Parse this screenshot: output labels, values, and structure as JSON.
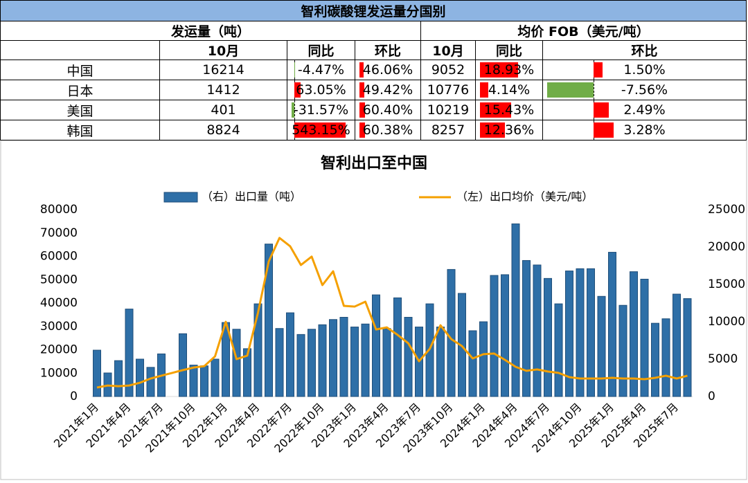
{
  "table": {
    "title": "智利碳酸锂发运量分国别",
    "group_headers": [
      "发运量（吨）",
      "均价 FOB（美元/吨）"
    ],
    "sub_headers": [
      "10月",
      "同比",
      "环比",
      "10月",
      "同比",
      "环比"
    ],
    "rows": [
      [
        "中国",
        "16214",
        "-4.47%",
        "46.06%",
        "9052",
        "18.93%",
        "1.50%"
      ],
      [
        "日本",
        "1412",
        "63.05%",
        "49.42%",
        "10776",
        "4.14%",
        "-7.56%"
      ],
      [
        "美国",
        "401",
        "-31.57%",
        "60.40%",
        "10219",
        "15.43%",
        "2.49%"
      ],
      [
        "韩国",
        "8824",
        "543.15%",
        "60.38%",
        "8257",
        "12.36%",
        "3.28%"
      ]
    ]
  },
  "chart_data": {
    "type": "combo",
    "title": "智利出口至中国",
    "categories": [
      "2021年1月",
      null,
      null,
      "2021年4月",
      null,
      null,
      "2021年7月",
      null,
      null,
      "2021年10月",
      null,
      null,
      "2022年1月",
      null,
      null,
      "2022年4月",
      null,
      null,
      "2022年7月",
      null,
      null,
      "2022年10月",
      null,
      null,
      "2023年1月",
      null,
      null,
      "2023年4月",
      null,
      null,
      "2023年7月",
      null,
      null,
      "2023年10月",
      null,
      null,
      "2024年1月",
      null,
      null,
      "2024年4月",
      null,
      null,
      "2024年7月",
      null,
      null,
      "2024年10月",
      null,
      null,
      "2025年1月",
      null,
      null,
      "2025年4月",
      null,
      null,
      "2025年7月",
      null
    ],
    "series": [
      {
        "name": "（右）出口量（吨）",
        "type": "bar",
        "axis": "y2",
        "color": "#2e6fa7",
        "values": [
          6200,
          3150,
          4800,
          11700,
          5000,
          3900,
          5700,
          null,
          8400,
          4200,
          4100,
          5000,
          9900,
          9000,
          6400,
          12400,
          20400,
          9100,
          11200,
          8300,
          9000,
          9600,
          10300,
          10600,
          9300,
          9700,
          13600,
          9100,
          13200,
          10600,
          9300,
          12400,
          9300,
          17000,
          13800,
          8800,
          10000,
          16200,
          16300,
          23100,
          18200,
          17600,
          15800,
          12400,
          16800,
          17100,
          17100,
          13400,
          19300,
          12200,
          16700,
          15700,
          9800,
          10400,
          13700,
          13100
        ]
      },
      {
        "name": "（左）出口均价（美元/吨）",
        "type": "line",
        "axis": "y",
        "color": "#f5a000",
        "values": [
          3850,
          4700,
          4400,
          4700,
          5900,
          7700,
          8900,
          10100,
          11300,
          12400,
          13000,
          17200,
          32000,
          16000,
          17500,
          35900,
          57800,
          67900,
          64300,
          56300,
          59900,
          47700,
          53600,
          38800,
          38500,
          40600,
          28700,
          29600,
          26400,
          22800,
          15100,
          20400,
          30500,
          24600,
          21600,
          16300,
          18100,
          18400,
          15700,
          12700,
          11000,
          11600,
          10700,
          10100,
          8300,
          7700,
          7700,
          7700,
          8000,
          7700,
          7700,
          7400,
          8000,
          8900,
          7700,
          8900
        ]
      }
    ],
    "ylim": [
      0,
      80000
    ],
    "yticks": [
      0,
      10000,
      20000,
      30000,
      40000,
      50000,
      60000,
      70000,
      80000
    ],
    "y2lim": [
      0,
      25000
    ],
    "y2ticks": [
      0,
      5000,
      10000,
      15000,
      20000,
      25000
    ],
    "legend": "top",
    "grid": false
  }
}
